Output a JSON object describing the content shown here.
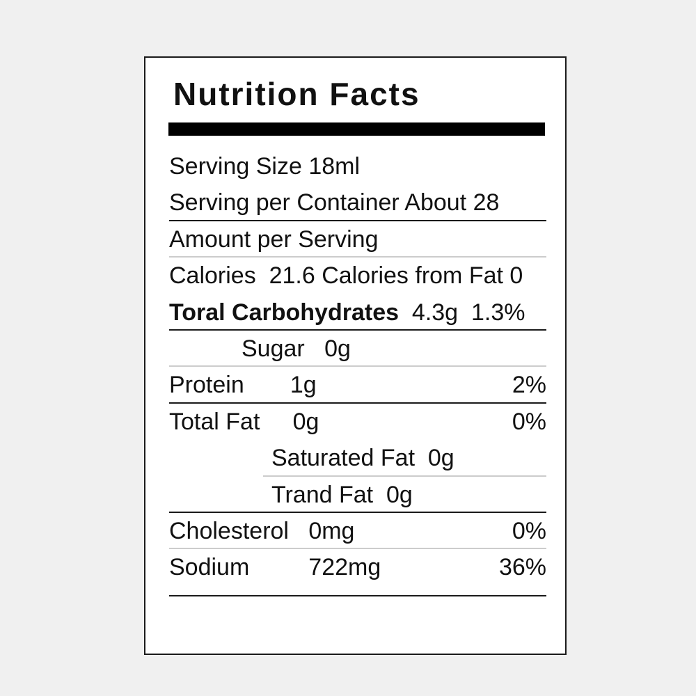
{
  "colors": {
    "background": "#f0f0f0",
    "card": "#ffffff",
    "text": "#111111",
    "dark_line": "#1a1a1a",
    "light_line": "#cccccc"
  },
  "label": {
    "title": "Nutrition Facts",
    "serving": {
      "size_row": "Serving Size 18ml",
      "per_container_row": "Serving per Container About 28",
      "amount_per_serving_row": "Amount per Serving",
      "calories_row": "Calories  21.6 Calories from Fat 0"
    },
    "nutrients": {
      "carbs_name": "Toral Carbohydrates",
      "carbs_values": "  4.3g  1.3%",
      "sugar": "Sugar   0g",
      "protein": "Protein       1g",
      "protein_pct": "2%",
      "total_fat": "Total Fat     0g",
      "total_fat_pct": "0%",
      "saturated_fat": "Saturated Fat  0g",
      "trand_fat": "Trand Fat  0g",
      "cholesterol": "Cholesterol   0mg",
      "cholesterol_pct": "0%",
      "sodium": "Sodium         722mg",
      "sodium_pct": "36%"
    }
  }
}
